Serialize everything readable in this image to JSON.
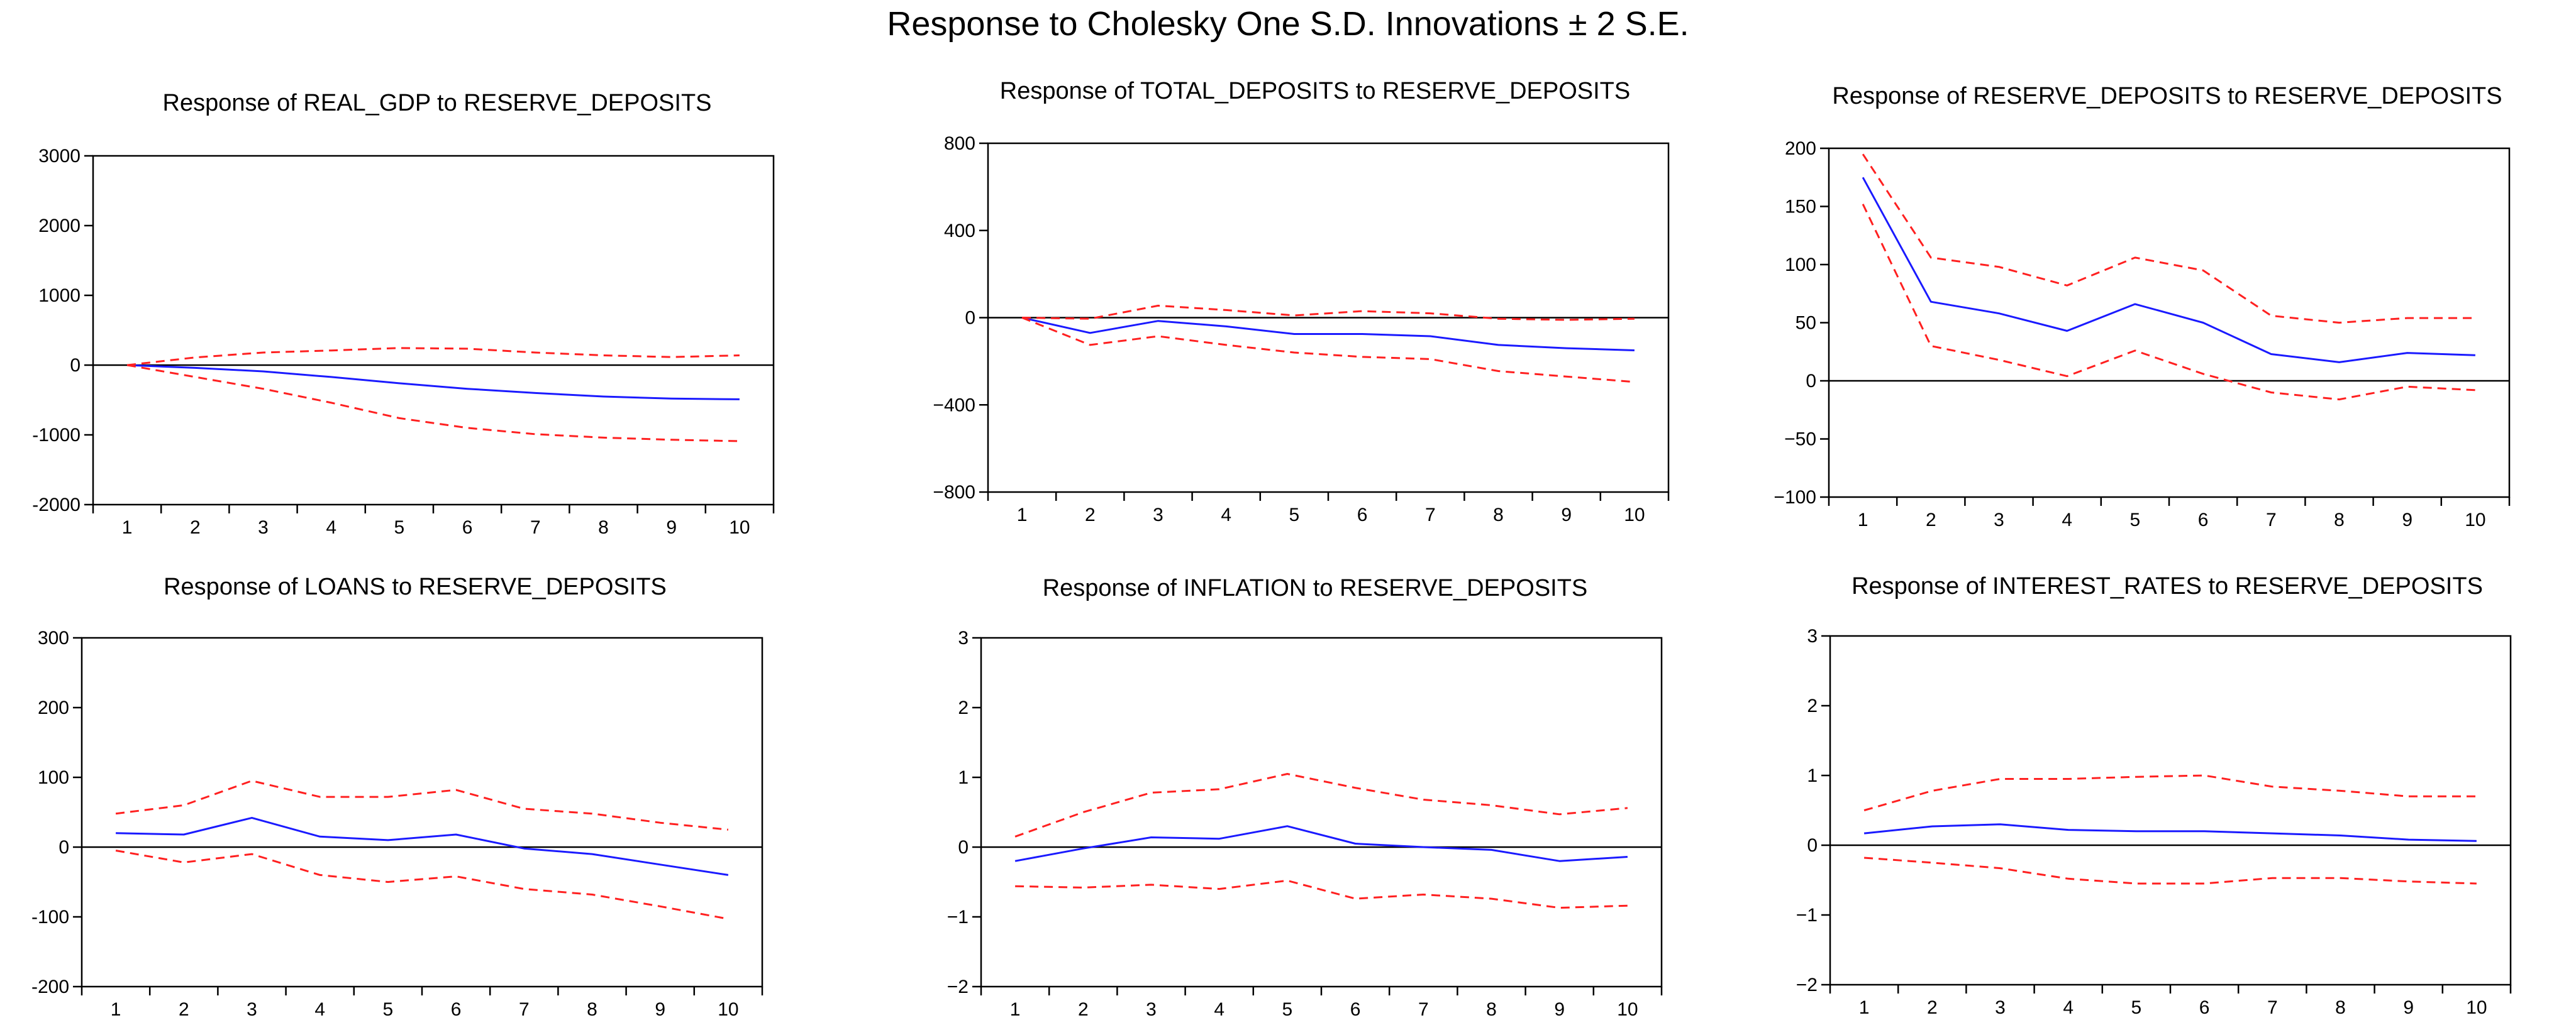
{
  "figure": {
    "title": "Response to Cholesky One S.D. Innovations ± 2 S.E."
  },
  "colors": {
    "response": "#1a1aff",
    "band": "#ff2020",
    "axis": "#000000",
    "background": "#ffffff"
  },
  "chart_data": [
    {
      "type": "line",
      "title": "Response of REAL_GDP to RESERVE_DEPOSITS",
      "x": [
        1,
        2,
        3,
        4,
        5,
        6,
        7,
        8,
        9,
        10
      ],
      "ylim": [
        -2000,
        3000
      ],
      "yticks": [
        -2000,
        -1000,
        0,
        1000,
        2000,
        3000
      ],
      "ytick_labels": [
        "-2000",
        "-1000",
        "0",
        "1000",
        "2000",
        "3000"
      ],
      "series": [
        {
          "name": "response",
          "style": "solid",
          "values": [
            0,
            -40,
            -90,
            -170,
            -260,
            -340,
            -400,
            -450,
            -480,
            -490
          ]
        },
        {
          "name": "upper_2se",
          "style": "dashed",
          "values": [
            0,
            110,
            180,
            210,
            245,
            235,
            180,
            140,
            115,
            140
          ]
        },
        {
          "name": "lower_2se",
          "style": "dashed",
          "values": [
            0,
            -170,
            -340,
            -540,
            -760,
            -900,
            -990,
            -1040,
            -1070,
            -1090
          ]
        }
      ]
    },
    {
      "type": "line",
      "title": "Response of TOTAL_DEPOSITS to RESERVE_DEPOSITS",
      "x": [
        1,
        2,
        3,
        4,
        5,
        6,
        7,
        8,
        9,
        10
      ],
      "ylim": [
        -800,
        800
      ],
      "yticks": [
        -800,
        -400,
        0,
        400,
        800
      ],
      "ytick_labels": [
        "−800",
        "−400",
        "0",
        "400",
        "800"
      ],
      "series": [
        {
          "name": "response",
          "style": "solid",
          "values": [
            0,
            -70,
            -15,
            -40,
            -75,
            -75,
            -85,
            -125,
            -140,
            -150
          ]
        },
        {
          "name": "upper_2se",
          "style": "dashed",
          "values": [
            0,
            -5,
            55,
            35,
            10,
            30,
            20,
            -5,
            -10,
            -5
          ]
        },
        {
          "name": "lower_2se",
          "style": "dashed",
          "values": [
            0,
            -125,
            -85,
            -125,
            -160,
            -180,
            -190,
            -245,
            -270,
            -295
          ]
        }
      ]
    },
    {
      "type": "line",
      "title": "Response of RESERVE_DEPOSITS to RESERVE_DEPOSITS",
      "x": [
        1,
        2,
        3,
        4,
        5,
        6,
        7,
        8,
        9,
        10
      ],
      "ylim": [
        -100,
        200
      ],
      "yticks": [
        -100,
        -50,
        0,
        50,
        100,
        150,
        200
      ],
      "ytick_labels": [
        "−100",
        "−50",
        "0",
        "50",
        "100",
        "150",
        "200"
      ],
      "series": [
        {
          "name": "response",
          "style": "solid",
          "values": [
            175,
            68,
            58,
            43,
            66,
            50,
            23,
            16,
            24,
            22
          ]
        },
        {
          "name": "upper_2se",
          "style": "dashed",
          "values": [
            195,
            106,
            98,
            82,
            106,
            95,
            56,
            50,
            54,
            54
          ]
        },
        {
          "name": "lower_2se",
          "style": "dashed",
          "values": [
            152,
            30,
            18,
            4,
            26,
            6,
            -10,
            -16,
            -5,
            -8
          ]
        }
      ]
    },
    {
      "type": "line",
      "title": "Response of LOANS to RESERVE_DEPOSITS",
      "x": [
        1,
        2,
        3,
        4,
        5,
        6,
        7,
        8,
        9,
        10
      ],
      "ylim": [
        -200,
        300
      ],
      "yticks": [
        -200,
        -100,
        0,
        100,
        200,
        300
      ],
      "ytick_labels": [
        "-200",
        "-100",
        "0",
        "100",
        "200",
        "300"
      ],
      "series": [
        {
          "name": "response",
          "style": "solid",
          "values": [
            20,
            18,
            42,
            15,
            10,
            18,
            -2,
            -10,
            -25,
            -40
          ]
        },
        {
          "name": "upper_2se",
          "style": "dashed",
          "values": [
            48,
            60,
            95,
            72,
            72,
            82,
            55,
            48,
            35,
            25
          ]
        },
        {
          "name": "lower_2se",
          "style": "dashed",
          "values": [
            -5,
            -22,
            -10,
            -40,
            -50,
            -42,
            -60,
            -68,
            -85,
            -103
          ]
        }
      ]
    },
    {
      "type": "line",
      "title": "Response of INFLATION to RESERVE_DEPOSITS",
      "x": [
        1,
        2,
        3,
        4,
        5,
        6,
        7,
        8,
        9,
        10
      ],
      "ylim": [
        -2,
        3
      ],
      "yticks": [
        -2,
        -1,
        0,
        1,
        2,
        3
      ],
      "ytick_labels": [
        "−2",
        "−1",
        "0",
        "1",
        "2",
        "3"
      ],
      "series": [
        {
          "name": "response",
          "style": "solid",
          "values": [
            -0.2,
            -0.02,
            0.14,
            0.12,
            0.3,
            0.05,
            0.0,
            -0.04,
            -0.2,
            -0.14
          ]
        },
        {
          "name": "upper_2se",
          "style": "dashed",
          "values": [
            0.15,
            0.5,
            0.78,
            0.83,
            1.05,
            0.85,
            0.68,
            0.6,
            0.47,
            0.56
          ]
        },
        {
          "name": "lower_2se",
          "style": "dashed",
          "values": [
            -0.56,
            -0.58,
            -0.54,
            -0.6,
            -0.48,
            -0.74,
            -0.68,
            -0.74,
            -0.87,
            -0.84
          ]
        }
      ]
    },
    {
      "type": "line",
      "title": "Response of INTEREST_RATES to RESERVE_DEPOSITS",
      "x": [
        1,
        2,
        3,
        4,
        5,
        6,
        7,
        8,
        9,
        10
      ],
      "ylim": [
        -2,
        3
      ],
      "yticks": [
        -2,
        -1,
        0,
        1,
        2,
        3
      ],
      "ytick_labels": [
        "−2",
        "−1",
        "0",
        "1",
        "2",
        "3"
      ],
      "series": [
        {
          "name": "response",
          "style": "solid",
          "values": [
            0.17,
            0.27,
            0.3,
            0.22,
            0.2,
            0.2,
            0.17,
            0.14,
            0.08,
            0.06
          ]
        },
        {
          "name": "upper_2se",
          "style": "dashed",
          "values": [
            0.5,
            0.78,
            0.95,
            0.95,
            0.98,
            1.0,
            0.84,
            0.78,
            0.7,
            0.7
          ]
        },
        {
          "name": "lower_2se",
          "style": "dashed",
          "values": [
            -0.18,
            -0.25,
            -0.33,
            -0.48,
            -0.55,
            -0.55,
            -0.47,
            -0.47,
            -0.52,
            -0.55
          ]
        }
      ]
    }
  ]
}
